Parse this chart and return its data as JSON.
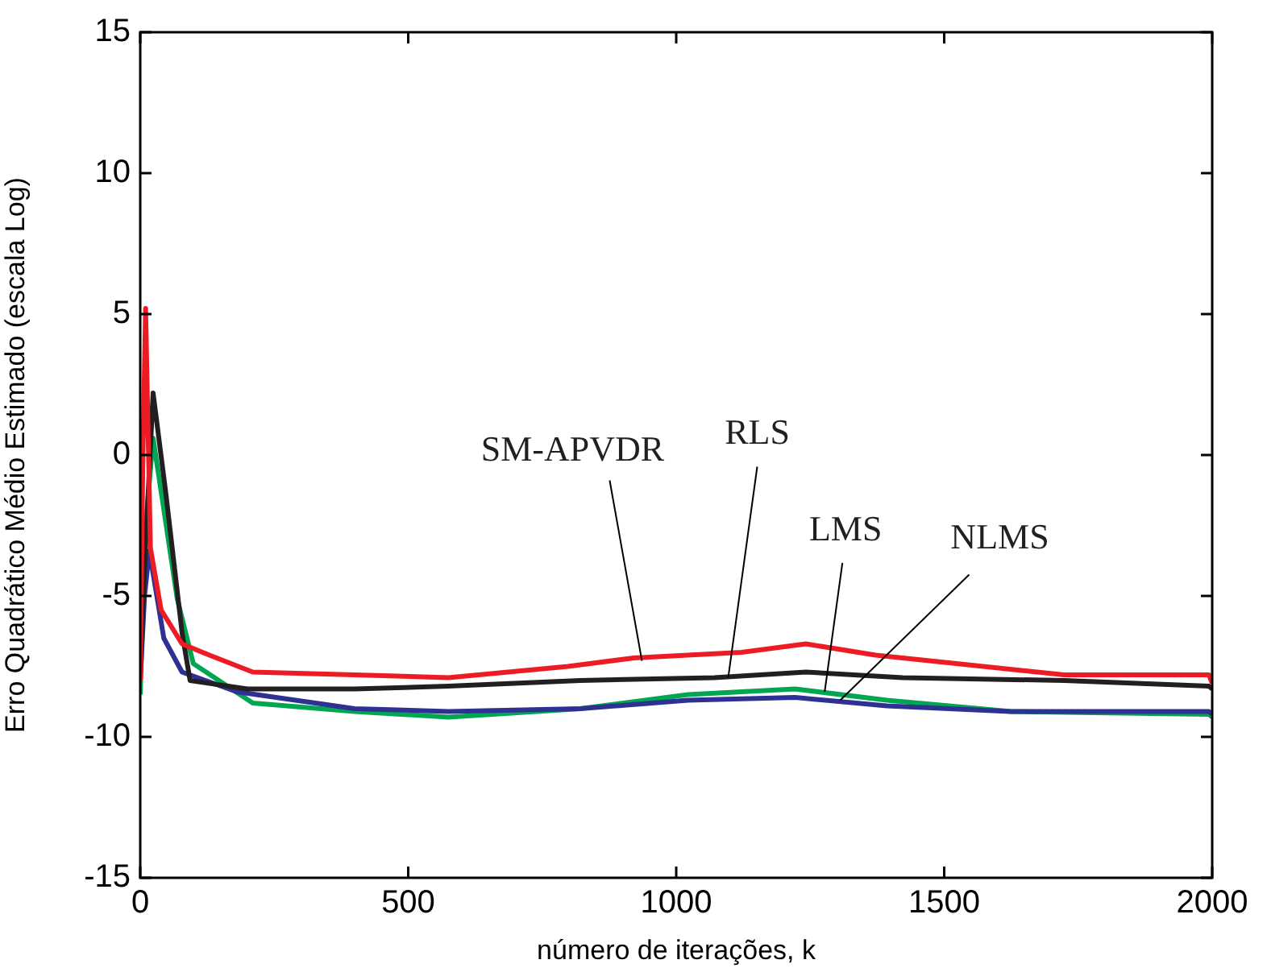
{
  "chart_data": {
    "type": "line",
    "xlabel": "número de iterações, k",
    "ylabel": "Erro Quadrático Médio Estimado (escala Log)",
    "xlim": [
      0,
      2000
    ],
    "xticks": [
      0,
      500,
      1000,
      1500,
      2000
    ],
    "ylim": [
      -15,
      15
    ],
    "yticks": [
      -15,
      -10,
      -5,
      0,
      5,
      10,
      15
    ],
    "grid": false,
    "legend": false,
    "marker": "none",
    "line_style": "solid",
    "series": [
      {
        "color": "#ed1c24",
        "x": [
          0,
          5,
          10,
          19,
          39,
          78,
          129,
          210,
          400,
          575,
          798,
          921,
          1122,
          1242,
          1372,
          1523,
          1724,
          1994,
          2000
        ],
        "values": [
          -8,
          0,
          5.2,
          -3.3,
          -5.5,
          -6.7,
          -7.1,
          -7.7,
          -7.8,
          -7.9,
          -7.5,
          -7.2,
          -7.0,
          -6.7,
          -7.1,
          -7.4,
          -7.8,
          -7.8,
          -8.1
        ]
      },
      {
        "color": "#231f20",
        "x": [
          0,
          8,
          24,
          48,
          78,
          93,
          200,
          400,
          575,
          821,
          1071,
          1242,
          1423,
          1724,
          1994,
          2000
        ],
        "values": [
          -7.7,
          -4,
          2.2,
          -1.4,
          -6.3,
          -8.0,
          -8.3,
          -8.3,
          -8.2,
          -8.0,
          -7.9,
          -7.7,
          -7.9,
          -8.0,
          -8.2,
          -8.3
        ]
      },
      {
        "color": "#2e3192",
        "x": [
          0,
          8,
          17,
          44,
          78,
          180,
          400,
          575,
          821,
          1022,
          1222,
          1393,
          1624,
          1994,
          2000
        ],
        "values": [
          -8,
          -5,
          -3.4,
          -6.5,
          -7.7,
          -8.4,
          -9.0,
          -9.1,
          -9.0,
          -8.7,
          -8.6,
          -8.9,
          -9.1,
          -9.1,
          -9.2
        ]
      },
      {
        "color": "#00a651",
        "x": [
          0,
          8,
          24,
          69,
          99,
          210,
          400,
          575,
          821,
          1022,
          1222,
          1393,
          1624,
          1994,
          2000
        ],
        "values": [
          -8.5,
          -3,
          0.6,
          -5.1,
          -7.4,
          -8.8,
          -9.1,
          -9.3,
          -9.0,
          -8.5,
          -8.3,
          -8.7,
          -9.1,
          -9.2,
          -9.3
        ]
      }
    ],
    "annotations": [
      {
        "text": "SM-APVDR",
        "x": 936,
        "y": -7.3
      },
      {
        "text": "RLS",
        "x": 1097,
        "y": -7.9
      },
      {
        "text": "LMS",
        "x": 1277,
        "y": -8.4
      },
      {
        "text": "NLMS",
        "x": 1306,
        "y": -8.7
      }
    ]
  }
}
